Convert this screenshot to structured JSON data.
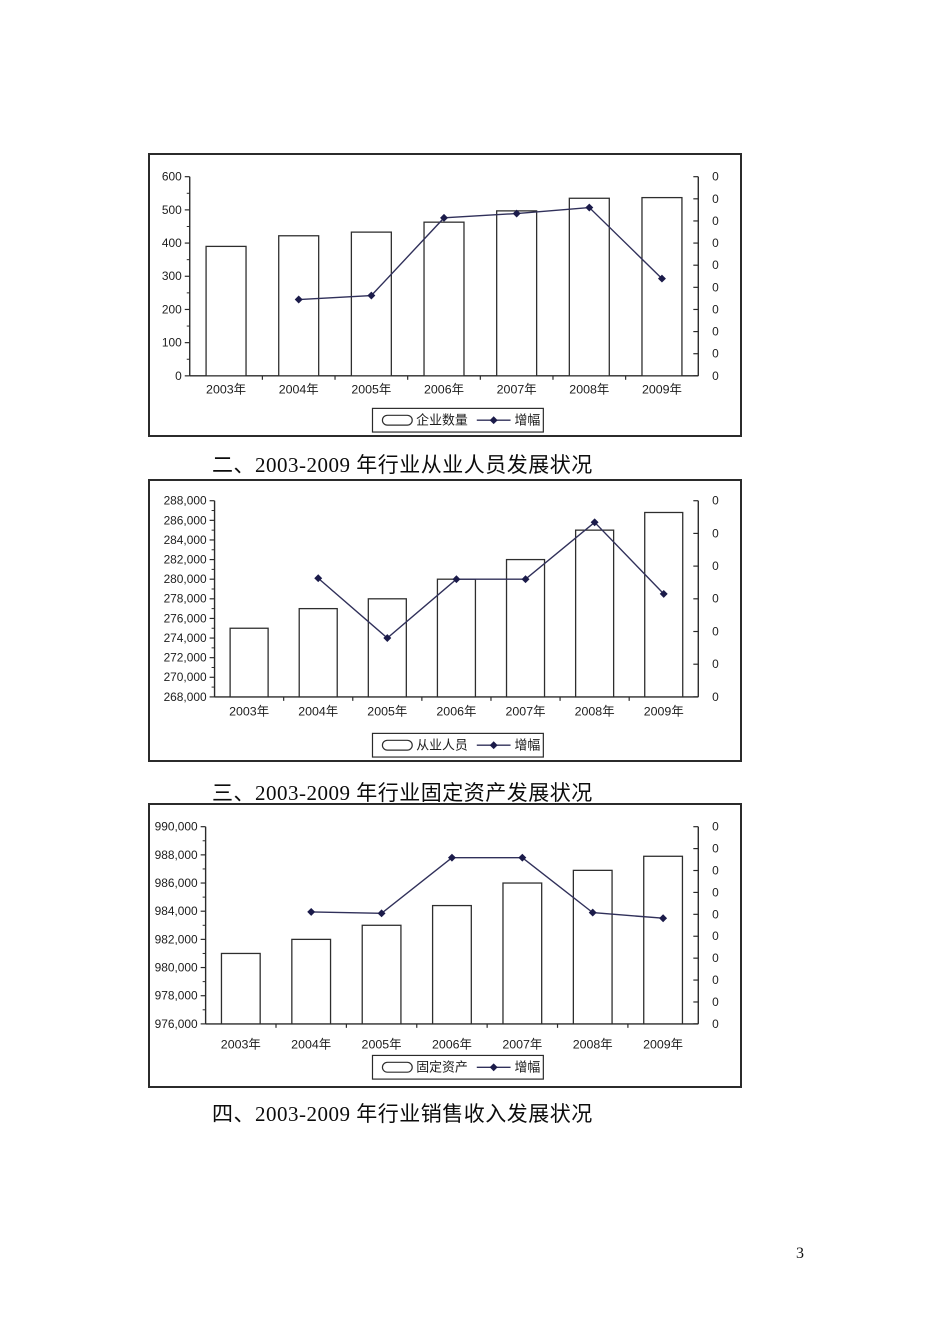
{
  "page": {
    "number": "3"
  },
  "captions": {
    "section2": "二、2003-2009 年行业从业人员发展状况",
    "section3": "三、2003-2009 年行业固定资产发展状况",
    "section4": "四、2003-2009 年行业销售收入发展状况"
  },
  "colors": {
    "axis": "#2a2a2a",
    "bar_fill": "#ffffff",
    "bar_stroke": "#2e2e2e",
    "line": "#30305a",
    "marker": "#1b1b4a",
    "text": "#1c1c1c",
    "border": "#2b2b2b"
  },
  "chart_data": [
    {
      "name": "enterprise-count-chart",
      "type": "bar+line",
      "categories": [
        "2003年",
        "2004年",
        "2005年",
        "2006年",
        "2007年",
        "2008年",
        "2009年"
      ],
      "series": [
        {
          "name": "企业数量",
          "type": "bar",
          "axis": "left",
          "values": [
            390,
            422,
            433,
            463,
            497,
            535,
            537
          ]
        },
        {
          "name": "增幅",
          "type": "line",
          "axis": "right",
          "values": [
            null,
            230,
            242,
            476,
            489,
            507,
            293
          ]
        }
      ],
      "ylim": [
        0,
        600
      ],
      "yticks": [
        "0",
        "100",
        "200",
        "300",
        "400",
        "500",
        "600"
      ],
      "right_yticks": [
        "0",
        "0",
        "0",
        "0",
        "0",
        "0",
        "0",
        "0",
        "0",
        "0"
      ],
      "legend": [
        "企业数量",
        "增幅"
      ],
      "legend_position": "bottom",
      "grid": false
    },
    {
      "name": "employees-chart",
      "type": "bar+line",
      "categories": [
        "2003年",
        "2004年",
        "2005年",
        "2006年",
        "2007年",
        "2008年",
        "2009年"
      ],
      "series": [
        {
          "name": "从业人员",
          "type": "bar",
          "axis": "left",
          "values": [
            275000,
            277000,
            278000,
            280000,
            282000,
            285000,
            286800
          ]
        },
        {
          "name": "增幅",
          "type": "line",
          "axis": "right",
          "values": [
            null,
            280100,
            274000,
            280000,
            280000,
            285800,
            278500
          ]
        }
      ],
      "ylim": [
        268000,
        288000
      ],
      "yticks": [
        "268,000",
        "270,000",
        "272,000",
        "274,000",
        "276,000",
        "278,000",
        "280,000",
        "282,000",
        "284,000",
        "286,000",
        "288,000"
      ],
      "right_yticks": [
        "0",
        "0",
        "0",
        "0",
        "0",
        "0",
        "0"
      ],
      "legend": [
        "从业人员",
        "增幅"
      ],
      "legend_position": "bottom",
      "grid": false
    },
    {
      "name": "fixed-assets-chart",
      "type": "bar+line",
      "categories": [
        "2003年",
        "2004年",
        "2005年",
        "2006年",
        "2007年",
        "2008年",
        "2009年"
      ],
      "series": [
        {
          "name": "固定资产",
          "type": "bar",
          "axis": "left",
          "values": [
            981000,
            982000,
            983000,
            984400,
            986000,
            986900,
            987900
          ]
        },
        {
          "name": "增幅",
          "type": "line",
          "axis": "right",
          "values": [
            null,
            983950,
            983850,
            987800,
            987800,
            983900,
            983500
          ]
        }
      ],
      "ylim": [
        976000,
        990000
      ],
      "yticks": [
        "976,000",
        "978,000",
        "980,000",
        "982,000",
        "984,000",
        "986,000",
        "988,000",
        "990,000"
      ],
      "right_yticks": [
        "0",
        "0",
        "0",
        "0",
        "0",
        "0",
        "0",
        "0",
        "0",
        "0"
      ],
      "legend": [
        "固定资产",
        "增幅"
      ],
      "legend_position": "bottom",
      "grid": false
    }
  ]
}
